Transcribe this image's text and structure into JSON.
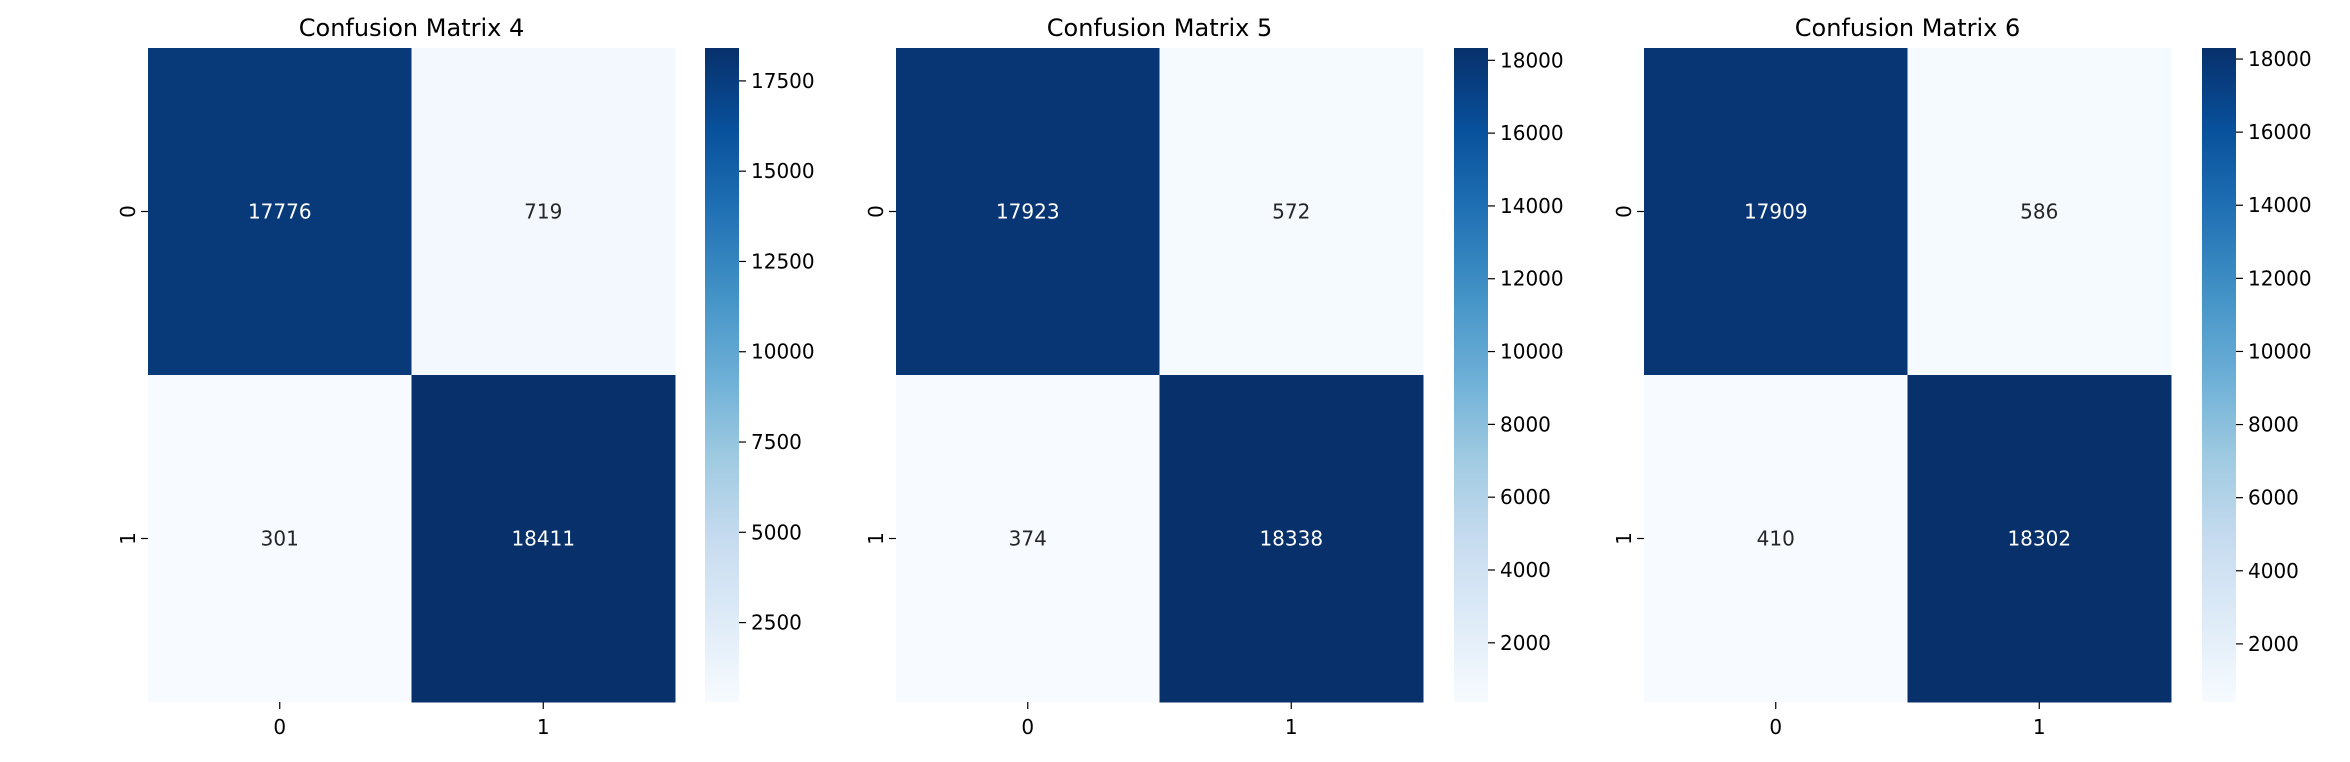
{
  "figure": {
    "colormap": [
      "#f7fbff",
      "#deebf7",
      "#c6dbef",
      "#9ecae1",
      "#6baed6",
      "#4292c6",
      "#2171b5",
      "#08519c",
      "#08306b"
    ],
    "dark_text_color": "#262626",
    "light_text_color": "#ffffff"
  },
  "chart_data": [
    {
      "type": "heatmap",
      "title": "Confusion Matrix 4",
      "xlabel": "",
      "ylabel": "",
      "x_ticks": [
        "0",
        "1"
      ],
      "y_ticks": [
        "0",
        "1"
      ],
      "matrix": [
        [
          17776,
          719
        ],
        [
          301,
          18411
        ]
      ],
      "colorbar": {
        "min": 301,
        "max": 18411,
        "ticks": [
          2500,
          5000,
          7500,
          10000,
          12500,
          15000,
          17500
        ]
      }
    },
    {
      "type": "heatmap",
      "title": "Confusion Matrix 5",
      "xlabel": "",
      "ylabel": "",
      "x_ticks": [
        "0",
        "1"
      ],
      "y_ticks": [
        "0",
        "1"
      ],
      "matrix": [
        [
          17923,
          572
        ],
        [
          374,
          18338
        ]
      ],
      "colorbar": {
        "min": 374,
        "max": 18338,
        "ticks": [
          2000,
          4000,
          6000,
          8000,
          10000,
          12000,
          14000,
          16000,
          18000
        ]
      }
    },
    {
      "type": "heatmap",
      "title": "Confusion Matrix 6",
      "xlabel": "",
      "ylabel": "",
      "x_ticks": [
        "0",
        "1"
      ],
      "y_ticks": [
        "0",
        "1"
      ],
      "matrix": [
        [
          17909,
          586
        ],
        [
          410,
          18302
        ]
      ],
      "colorbar": {
        "min": 410,
        "max": 18302,
        "ticks": [
          2000,
          4000,
          6000,
          8000,
          10000,
          12000,
          14000,
          16000,
          18000
        ]
      }
    }
  ]
}
